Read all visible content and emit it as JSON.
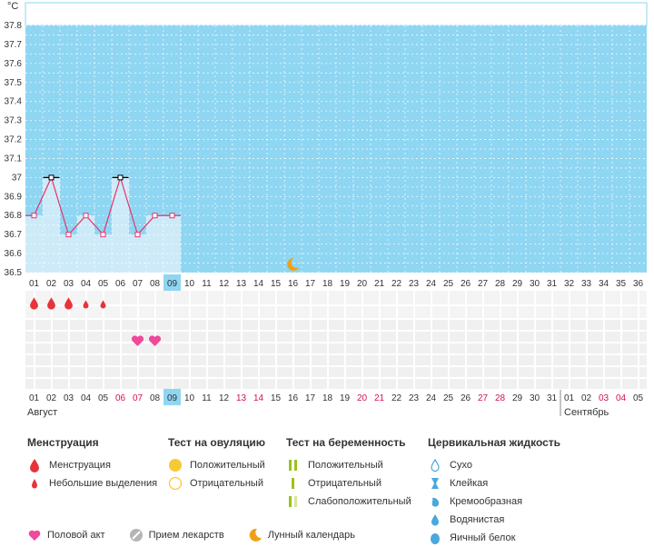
{
  "chart_data": {
    "type": "line",
    "unit": "°C",
    "y_ticks": [
      "36.5",
      "36.6",
      "36.7",
      "36.8",
      "36.9",
      "37",
      "37.1",
      "37.2",
      "37.3",
      "37.4",
      "37.5",
      "37.6",
      "37.7",
      "37.8"
    ],
    "ylim": [
      36.5,
      37.8
    ],
    "x_days": [
      "01",
      "02",
      "03",
      "04",
      "05",
      "06",
      "07",
      "08",
      "09",
      "10",
      "11",
      "12",
      "13",
      "14",
      "15",
      "16",
      "17",
      "18",
      "19",
      "20",
      "21",
      "22",
      "23",
      "24",
      "25",
      "26",
      "27",
      "28",
      "29",
      "30",
      "31",
      "32",
      "33",
      "34",
      "35",
      "36"
    ],
    "temperatures": [
      36.8,
      37.0,
      36.7,
      36.8,
      36.7,
      37.0,
      36.7,
      36.8,
      36.8
    ],
    "highlighted_day": "09",
    "moon_day": "16",
    "menstruation_days": [
      "01",
      "02",
      "03"
    ],
    "light_spotting_days": [
      "04",
      "05"
    ],
    "intercourse_days": [
      "07",
      "08"
    ],
    "dates_august": [
      "01",
      "02",
      "03",
      "04",
      "05",
      "06",
      "07",
      "08",
      "09",
      "10",
      "11",
      "12",
      "13",
      "14",
      "15",
      "16",
      "17",
      "18",
      "19",
      "20",
      "21",
      "22",
      "23",
      "24",
      "25",
      "26",
      "27",
      "28",
      "29",
      "30",
      "31"
    ],
    "dates_september": [
      "01",
      "02",
      "03",
      "04",
      "05"
    ],
    "weekend_dates_august": [
      "06",
      "07",
      "13",
      "14",
      "20",
      "21",
      "27",
      "28"
    ],
    "weekend_dates_september": [
      "03",
      "04"
    ],
    "month_label_1": "Август",
    "month_label_2": "Сентябрь",
    "colors": {
      "plot_bg": "#8fd6f2",
      "past_bg": "#cdeaf8",
      "line": "#e8336b",
      "weekend": "#d6114a",
      "highlight": "#8fd6f2"
    }
  },
  "legend": {
    "menstruation": {
      "title": "Менструация",
      "items": [
        "Менструация",
        "Небольшие выделения"
      ]
    },
    "ovulation": {
      "title": "Тест на овуляцию",
      "items": [
        "Положительный",
        "Отрицательный"
      ]
    },
    "pregnancy": {
      "title": "Тест на беременность",
      "items": [
        "Положительный",
        "Отрицательный",
        "Слабоположительный"
      ]
    },
    "cervical": {
      "title": "Цервикальная жидкость",
      "items": [
        "Сухо",
        "Клейкая",
        "Кремообразная",
        "Водянистая",
        "Яичный белок"
      ]
    },
    "bottom": [
      "Половой акт",
      "Прием лекарств",
      "Лунный календарь"
    ]
  }
}
